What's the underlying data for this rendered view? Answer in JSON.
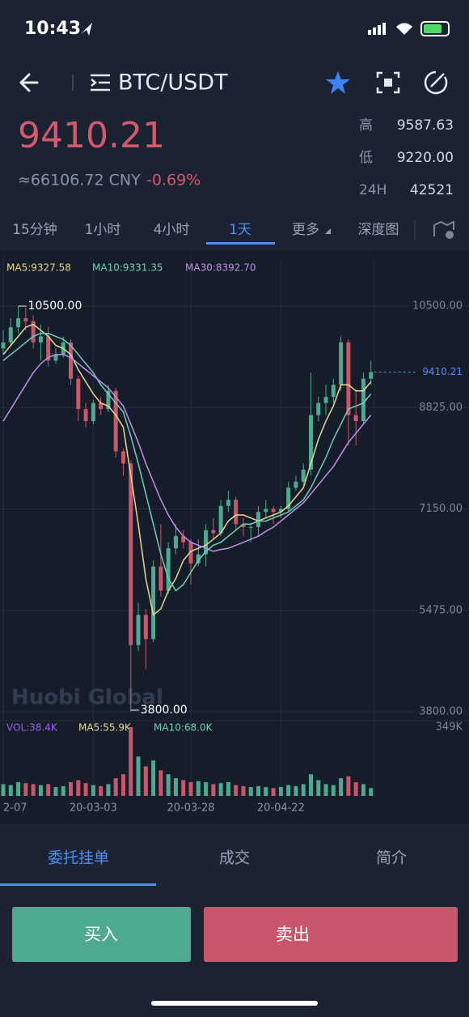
{
  "status_bar": {
    "time": "10:43"
  },
  "header": {
    "pair": "BTC/USDT"
  },
  "ticker": {
    "price": "9410.21",
    "cny": "≈66106.72 CNY",
    "change": "-0.69%",
    "stats": [
      {
        "label": "高",
        "value": "9587.63"
      },
      {
        "label": "低",
        "value": "9220.00"
      },
      {
        "label": "24H",
        "value": "42521"
      }
    ]
  },
  "tabs": [
    "15分钟",
    "1小时",
    "4小时",
    "1天",
    "更多",
    "深度图"
  ],
  "chart_data": {
    "type": "candlestick",
    "categories": [
      "2-07",
      null,
      null,
      null,
      null,
      null,
      null,
      null,
      null,
      null,
      null,
      null,
      "20-03-03",
      null,
      null,
      null,
      null,
      null,
      null,
      null,
      null,
      null,
      null,
      null,
      null,
      "20-03-28",
      null,
      null,
      null,
      null,
      null,
      null,
      null,
      null,
      null,
      null,
      null,
      "20-04-22",
      null,
      null,
      null,
      null,
      null,
      null,
      null,
      null,
      null,
      null,
      null,
      null
    ],
    "open": [
      9800,
      9900,
      10150,
      10300,
      10250,
      9900,
      10000,
      9600,
      9700,
      9900,
      9300,
      8800,
      8600,
      8900,
      8800,
      9100,
      8100,
      7900,
      4900,
      5400,
      5000,
      6200,
      5800,
      6500,
      6700,
      6600,
      6250,
      6400,
      6800,
      6750,
      7200,
      7300,
      6900,
      6850,
      6850,
      7100,
      7150,
      7100,
      7150,
      7500,
      7600,
      7800,
      8700,
      8900,
      9000,
      9200,
      9900,
      8700,
      8600,
      9300
    ],
    "close": [
      9900,
      10150,
      10300,
      10250,
      9900,
      10000,
      9600,
      9700,
      9900,
      9300,
      8800,
      8600,
      8900,
      8800,
      9100,
      8100,
      7900,
      4900,
      5400,
      5000,
      6200,
      5800,
      6500,
      6700,
      6600,
      6250,
      6400,
      6800,
      6750,
      7200,
      7300,
      6900,
      6850,
      6850,
      7100,
      7150,
      7100,
      7150,
      7500,
      7600,
      7800,
      8700,
      8900,
      9000,
      9200,
      9900,
      8700,
      8600,
      9300,
      9410.21
    ],
    "high": [
      10100,
      10300,
      10500,
      10480,
      10350,
      10200,
      10150,
      9800,
      10000,
      9950,
      9350,
      8900,
      8950,
      9000,
      9200,
      9150,
      8150,
      7950,
      5600,
      5500,
      6300,
      6900,
      6600,
      6900,
      6800,
      6650,
      6650,
      6900,
      7000,
      7300,
      7450,
      7350,
      7000,
      6900,
      7200,
      7300,
      7200,
      7200,
      7600,
      7700,
      7900,
      9400,
      9000,
      9200,
      9300,
      10000,
      9950,
      9100,
      9400,
      9600
    ],
    "low": [
      9700,
      9850,
      10050,
      10100,
      9800,
      9600,
      9500,
      9550,
      9650,
      9200,
      8600,
      8500,
      8550,
      8700,
      8750,
      8000,
      7700,
      3800,
      4800,
      4500,
      4950,
      5700,
      5750,
      6400,
      6500,
      5900,
      6200,
      6200,
      6650,
      6700,
      7100,
      6800,
      6700,
      6600,
      6700,
      7000,
      6900,
      7000,
      7100,
      7450,
      7550,
      7700,
      8600,
      8700,
      8900,
      9100,
      8200,
      8200,
      8550,
      9200
    ],
    "up_color": "#4daa90",
    "down_color": "#c9566a",
    "series": [
      {
        "name": "MA5:9327.58",
        "color": "#e9d88f",
        "values": [
          9700,
          9850,
          10000,
          10150,
          10200,
          10100,
          10000,
          9850,
          9800,
          9700,
          9450,
          9250,
          9050,
          8900,
          8850,
          8700,
          8500,
          7700,
          6900,
          6000,
          5400,
          5500,
          5800,
          6000,
          6300,
          6450,
          6500,
          6550,
          6650,
          6750,
          6950,
          7050,
          7050,
          7000,
          6950,
          7000,
          7050,
          7100,
          7200,
          7350,
          7500,
          7900,
          8300,
          8600,
          8850,
          9200,
          9200,
          9100,
          9100,
          9250
        ]
      },
      {
        "name": "MA10:9331.35",
        "color": "#6fd0b8",
        "values": [
          9600,
          9700,
          9800,
          9900,
          10000,
          10050,
          10050,
          10000,
          9950,
          9850,
          9700,
          9550,
          9400,
          9200,
          9050,
          8900,
          8750,
          8350,
          7900,
          7400,
          6900,
          6400,
          6000,
          5800,
          5900,
          6100,
          6300,
          6450,
          6550,
          6600,
          6700,
          6800,
          6900,
          6900,
          6950,
          6950,
          7000,
          7050,
          7100,
          7200,
          7300,
          7500,
          7750,
          8000,
          8300,
          8550,
          8800,
          8850,
          8900,
          9050
        ]
      },
      {
        "name": "MA30:8392.70",
        "color": "#c48ee8",
        "values": [
          8600,
          8800,
          9000,
          9200,
          9400,
          9550,
          9650,
          9700,
          9700,
          9650,
          9550,
          9450,
          9350,
          9250,
          9150,
          9000,
          8850,
          8550,
          8250,
          7900,
          7600,
          7300,
          7050,
          6850,
          6700,
          6600,
          6550,
          6500,
          6450,
          6480,
          6500,
          6550,
          6600,
          6650,
          6700,
          6780,
          6850,
          6950,
          7050,
          7150,
          7250,
          7400,
          7550,
          7700,
          7850,
          8050,
          8250,
          8400,
          8550,
          8700
        ]
      }
    ],
    "ylim": [
      3680,
      11276
    ],
    "yticks": [
      {
        "value": 10500,
        "label": "10500.00"
      },
      {
        "value": 8825,
        "label": "8825.00"
      },
      {
        "value": 7150,
        "label": "7150.00"
      },
      {
        "value": 5475,
        "label": "5475.00"
      },
      {
        "value": 3800,
        "label": "3800.00"
      }
    ],
    "high_label": "10500.00",
    "low_label": "3800.00",
    "last_label": "9410.21",
    "watermark": "Huobi Global",
    "volume": {
      "label": "VOL:38.4K",
      "ma_labels": [
        {
          "text": "MA5:55.9K",
          "color": "#e9d88f"
        },
        {
          "text": "MA10:68.0K",
          "color": "#6fd0b8"
        }
      ],
      "values": [
        60000,
        55000,
        70000,
        65000,
        60000,
        55000,
        60000,
        45000,
        50000,
        70000,
        80000,
        65000,
        55000,
        50000,
        60000,
        90000,
        110000,
        349000,
        200000,
        150000,
        180000,
        130000,
        110000,
        90000,
        80000,
        70000,
        75000,
        70000,
        60000,
        65000,
        70000,
        55000,
        50000,
        45000,
        50000,
        45000,
        40000,
        45000,
        55000,
        50000,
        60000,
        110000,
        80000,
        60000,
        55000,
        90000,
        100000,
        70000,
        60000,
        40000
      ],
      "ylim": [
        0,
        349000
      ],
      "yticks": [
        {
          "value": 349000,
          "label": "349K"
        }
      ]
    }
  },
  "bottom_tabs": [
    "委托挂单",
    "成交",
    "简介"
  ],
  "buttons": {
    "buy": "买入",
    "sell": "卖出"
  }
}
